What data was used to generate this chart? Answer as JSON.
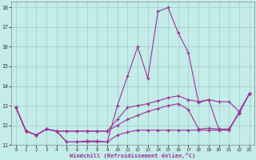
{
  "xlabel": "Windchill (Refroidissement éolien,°C)",
  "background_color": "#c4ece8",
  "line_color": "#993399",
  "grid_color": "#99cccc",
  "xlim_min": -0.5,
  "xlim_max": 23.5,
  "ylim_min": 11.0,
  "ylim_max": 18.3,
  "yticks": [
    11,
    12,
    13,
    14,
    15,
    16,
    17,
    18
  ],
  "xticks": [
    0,
    1,
    2,
    3,
    4,
    5,
    6,
    7,
    8,
    9,
    10,
    11,
    12,
    13,
    14,
    15,
    16,
    17,
    18,
    19,
    20,
    21,
    22,
    23
  ],
  "curve1": [
    12.9,
    11.7,
    11.5,
    11.8,
    11.7,
    11.15,
    11.15,
    11.15,
    11.15,
    11.15,
    13.0,
    14.5,
    16.0,
    14.4,
    17.8,
    18.0,
    16.7,
    15.7,
    13.15,
    13.3,
    11.8,
    11.8,
    12.6,
    13.6
  ],
  "curve2": [
    12.9,
    11.7,
    11.5,
    11.8,
    11.7,
    11.7,
    11.7,
    11.7,
    11.7,
    11.7,
    12.3,
    12.9,
    13.0,
    13.1,
    13.25,
    13.4,
    13.5,
    13.3,
    13.2,
    13.3,
    13.2,
    13.2,
    12.7,
    13.6
  ],
  "curve3": [
    12.9,
    11.7,
    11.5,
    11.8,
    11.7,
    11.7,
    11.7,
    11.7,
    11.7,
    11.7,
    12.0,
    12.3,
    12.5,
    12.7,
    12.85,
    13.0,
    13.1,
    12.8,
    11.8,
    11.85,
    11.8,
    11.8,
    12.65,
    13.6
  ],
  "curve4": [
    12.9,
    11.7,
    11.5,
    11.8,
    11.7,
    11.15,
    11.15,
    11.2,
    11.2,
    11.15,
    11.5,
    11.65,
    11.75,
    11.75,
    11.75,
    11.75,
    11.75,
    11.75,
    11.75,
    11.75,
    11.75,
    11.75,
    12.65,
    13.6
  ]
}
